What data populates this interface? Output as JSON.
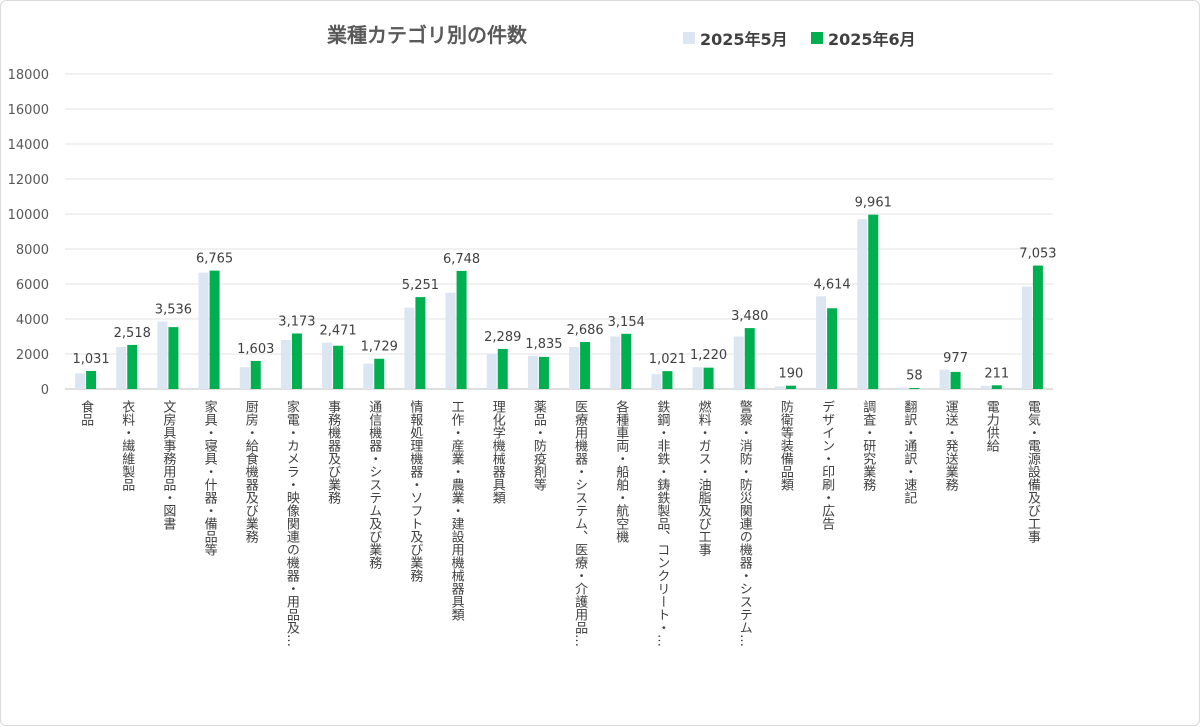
{
  "chart_data": {
    "type": "bar",
    "title": "業種カテゴリ別の件数",
    "xlabel": "",
    "ylabel": "",
    "ylim": [
      0,
      18000
    ],
    "yticks": [
      0,
      2000,
      4000,
      6000,
      8000,
      10000,
      12000,
      14000,
      16000,
      18000
    ],
    "grid": true,
    "legend_position": "top-right",
    "categories": [
      "食品",
      "衣料・繊維製品",
      "文房具事務用品・図書",
      "家具・寝具・什器・備品等",
      "厨房・給食機器及び業務",
      "家電・カメラ・映像関連の機器・用品及…",
      "事務機器及び業務",
      "通信機器・システム及び業務",
      "情報処理機器・ソフト及び業務",
      "工作・産業・農業・建設用機械器具類",
      "理化学機械器具類",
      "薬品・防疫剤等",
      "医療用機器・システム、医療・介護用品…",
      "各種車両・船舶・航空機",
      "鉄鋼・非鉄・鋳鉄製品、コンクリート・…",
      "燃料・ガス・油脂及び工事",
      "警察・消防・防災関連の機器・システム…",
      "防衛等装備品類",
      "デザイン・印刷・広告",
      "調査・研究業務",
      "翻訳・通訳・速記",
      "運送・発送業務",
      "電力供給",
      "電気・電源設備及び工事"
    ],
    "series": [
      {
        "name": "2025年5月",
        "color": "#dce6f2",
        "values": [
          900,
          2400,
          3850,
          6650,
          1250,
          2800,
          2650,
          1450,
          4650,
          5500,
          2000,
          1900,
          2400,
          3000,
          850,
          1250,
          3000,
          150,
          5300,
          9700,
          90,
          1100,
          180,
          5850
        ]
      },
      {
        "name": "2025年6月",
        "color": "#00b050",
        "values": [
          1031,
          2518,
          3536,
          6765,
          1603,
          3173,
          2471,
          1729,
          5251,
          6748,
          2289,
          1835,
          2686,
          3154,
          1021,
          1220,
          3480,
          190,
          4614,
          9961,
          58,
          977,
          211,
          7053
        ]
      }
    ],
    "data_labels": [
      "1,031",
      "2,518",
      "3,536",
      "6,765",
      "1,603",
      "3,173",
      "2,471",
      "1,729",
      "5,251",
      "6,748",
      "2,289",
      "1,835",
      "2,686",
      "3,154",
      "1,021",
      "1,220",
      "3,480",
      "190",
      "4,614",
      "9,961",
      "58",
      "977",
      "211",
      "7,053"
    ]
  }
}
